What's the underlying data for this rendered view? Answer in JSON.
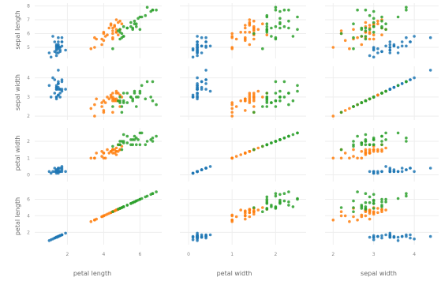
{
  "chart_data": {
    "type": "scatter",
    "title": "",
    "rows": [
      "sepal length",
      "sepal width",
      "petal width",
      "petal length"
    ],
    "columns": [
      "petal length",
      "petal width",
      "sepal width"
    ],
    "series_colors": [
      "#1f77b4",
      "#ff7f0e",
      "#2ca02c"
    ],
    "axes": {
      "sepal length": {
        "range": [
          4.2,
          8.2
        ],
        "ticks": [
          4,
          5,
          6,
          7,
          8
        ]
      },
      "sepal width": {
        "range": [
          1.8,
          4.6
        ],
        "ticks": [
          2,
          3,
          4
        ]
      },
      "petal width": {
        "range": [
          -0.4,
          2.8
        ],
        "ticks": [
          0,
          1,
          2
        ]
      },
      "petal length": {
        "range": [
          0.5,
          7.2
        ],
        "ticks": [
          2,
          4,
          6
        ]
      }
    },
    "column_axes": {
      "petal length": {
        "range": [
          0.2,
          7.2
        ],
        "ticks": [
          2,
          4,
          6
        ]
      },
      "petal width": {
        "range": [
          -0.2,
          2.7
        ],
        "ticks": [
          0,
          1,
          2
        ]
      },
      "sepal width": {
        "range": [
          1.8,
          4.6
        ],
        "ticks": [
          2,
          3,
          4
        ]
      }
    },
    "species": [
      {
        "color": "#1f77b4",
        "sepal_length": [
          5.1,
          4.9,
          4.7,
          4.6,
          5.0,
          5.4,
          4.6,
          5.0,
          4.4,
          4.9,
          5.4,
          4.8,
          4.8,
          4.3,
          5.8,
          5.7,
          5.4,
          5.1,
          5.7,
          5.1,
          5.4,
          5.1,
          4.6,
          5.1,
          4.8,
          5.0,
          5.0,
          5.2,
          5.2,
          4.7
        ],
        "sepal_width": [
          3.5,
          3.0,
          3.2,
          3.1,
          3.6,
          3.9,
          3.4,
          3.4,
          2.9,
          3.1,
          3.7,
          3.4,
          3.0,
          3.0,
          4.0,
          4.4,
          3.9,
          3.5,
          3.8,
          3.8,
          3.4,
          3.7,
          3.6,
          3.3,
          3.4,
          3.0,
          3.4,
          3.5,
          3.4,
          3.2
        ],
        "petal_length": [
          1.4,
          1.4,
          1.3,
          1.5,
          1.4,
          1.7,
          1.4,
          1.5,
          1.4,
          1.5,
          1.5,
          1.6,
          1.4,
          1.1,
          1.2,
          1.5,
          1.3,
          1.4,
          1.7,
          1.5,
          1.7,
          1.5,
          1.0,
          1.7,
          1.9,
          1.6,
          1.6,
          1.5,
          1.4,
          1.6
        ],
        "petal_width": [
          0.2,
          0.2,
          0.2,
          0.2,
          0.2,
          0.4,
          0.3,
          0.2,
          0.2,
          0.1,
          0.2,
          0.2,
          0.1,
          0.1,
          0.2,
          0.4,
          0.4,
          0.3,
          0.3,
          0.3,
          0.2,
          0.4,
          0.2,
          0.5,
          0.2,
          0.2,
          0.4,
          0.2,
          0.2,
          0.2
        ]
      },
      {
        "color": "#ff7f0e",
        "sepal_length": [
          7.0,
          6.4,
          6.9,
          5.5,
          6.5,
          5.7,
          6.3,
          4.9,
          6.6,
          5.2,
          5.0,
          5.9,
          6.0,
          6.1,
          5.6,
          6.7,
          5.6,
          5.8,
          6.2,
          5.6,
          5.9,
          6.1,
          6.3,
          6.1,
          6.4,
          6.6,
          6.8,
          6.7,
          6.0,
          5.7
        ],
        "sepal_width": [
          3.2,
          3.2,
          3.1,
          2.3,
          2.8,
          2.8,
          3.3,
          2.4,
          2.9,
          2.7,
          2.0,
          3.0,
          2.2,
          2.9,
          2.9,
          3.1,
          3.0,
          2.7,
          2.2,
          2.5,
          3.2,
          2.8,
          2.5,
          2.8,
          2.9,
          3.0,
          2.8,
          3.0,
          2.9,
          2.6
        ],
        "petal_length": [
          4.7,
          4.5,
          4.9,
          4.0,
          4.6,
          4.5,
          4.7,
          3.3,
          4.6,
          3.9,
          3.5,
          4.2,
          4.0,
          4.7,
          3.6,
          4.4,
          4.5,
          4.1,
          4.5,
          3.9,
          4.8,
          4.0,
          4.9,
          4.7,
          4.3,
          4.4,
          4.8,
          5.0,
          4.5,
          3.5
        ],
        "petal_width": [
          1.4,
          1.5,
          1.5,
          1.3,
          1.5,
          1.3,
          1.6,
          1.0,
          1.3,
          1.4,
          1.0,
          1.5,
          1.0,
          1.4,
          1.3,
          1.4,
          1.5,
          1.0,
          1.5,
          1.1,
          1.8,
          1.3,
          1.5,
          1.2,
          1.3,
          1.4,
          1.4,
          1.7,
          1.5,
          1.0
        ]
      },
      {
        "color": "#2ca02c",
        "sepal_length": [
          6.3,
          5.8,
          7.1,
          6.3,
          6.5,
          7.6,
          4.9,
          7.3,
          6.7,
          7.2,
          6.5,
          6.4,
          6.8,
          5.7,
          5.8,
          6.4,
          6.5,
          7.7,
          7.7,
          6.0,
          6.9,
          5.6,
          7.7,
          6.3,
          6.7,
          7.2,
          6.2,
          6.1,
          6.4,
          7.9
        ],
        "sepal_width": [
          3.3,
          2.7,
          3.0,
          2.9,
          3.0,
          3.0,
          2.5,
          2.9,
          2.5,
          3.6,
          3.2,
          2.7,
          3.0,
          2.5,
          2.8,
          3.2,
          3.0,
          3.8,
          2.6,
          2.2,
          3.2,
          2.8,
          2.8,
          2.7,
          3.3,
          3.2,
          2.8,
          3.0,
          2.8,
          3.8
        ],
        "petal_length": [
          6.0,
          5.1,
          5.9,
          5.6,
          5.8,
          6.6,
          4.5,
          6.3,
          5.8,
          6.1,
          5.1,
          5.3,
          5.5,
          5.0,
          5.1,
          5.3,
          5.5,
          6.7,
          6.9,
          5.0,
          5.7,
          4.9,
          6.7,
          4.9,
          5.7,
          6.0,
          4.8,
          4.9,
          5.6,
          6.4
        ],
        "petal_width": [
          2.5,
          1.9,
          2.1,
          1.8,
          2.2,
          2.1,
          1.7,
          1.8,
          1.8,
          2.5,
          2.0,
          1.9,
          2.1,
          2.0,
          2.4,
          2.3,
          1.8,
          2.2,
          2.3,
          1.5,
          2.3,
          2.0,
          2.0,
          1.8,
          2.1,
          1.8,
          1.8,
          1.8,
          2.1,
          2.0
        ]
      }
    ]
  }
}
